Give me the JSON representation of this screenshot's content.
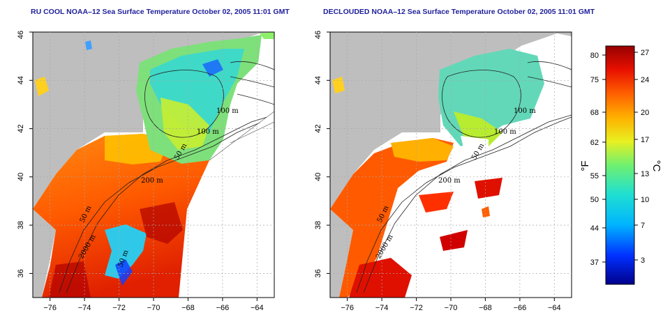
{
  "panels": [
    {
      "id": "left",
      "title": "RU COOL NOAA–12 Sea Surface Temperature October 02, 2005 11:01 GMT"
    },
    {
      "id": "right",
      "title": "DECLOUDED NOAA–12 Sea Surface Temperature October 02, 2005 11:01 GMT"
    }
  ],
  "map_axes": {
    "lon_ticks": [
      "−76",
      "−74",
      "−72",
      "−70",
      "−68",
      "−66",
      "−64"
    ],
    "lat_ticks": [
      "36",
      "38",
      "40",
      "42",
      "44",
      "46"
    ],
    "lon_range": [
      -77,
      -63
    ],
    "lat_range": [
      35,
      46
    ]
  },
  "contour_labels": {
    "left": [
      "100 m",
      "100 m",
      "50 m",
      "200 m",
      "50 m",
      "2000 m",
      "50 m"
    ],
    "right": [
      "100 m",
      "100 m",
      "50 m",
      "200 m",
      "50 m",
      "2000 m"
    ]
  },
  "colorbar": {
    "fahrenheit_label": "°F",
    "celsius_label": "°C",
    "fahrenheit_ticks": [
      "80",
      "75",
      "68",
      "62",
      "55",
      "50",
      "44",
      "37"
    ],
    "celsius_ticks": [
      "27",
      "24",
      "20",
      "17",
      "13",
      "10",
      "7",
      "3"
    ]
  },
  "colors": {
    "land": "#bebebe",
    "cloud": "#ffffff",
    "title": "#1f1f9c",
    "grid": "#a8a8a8"
  }
}
